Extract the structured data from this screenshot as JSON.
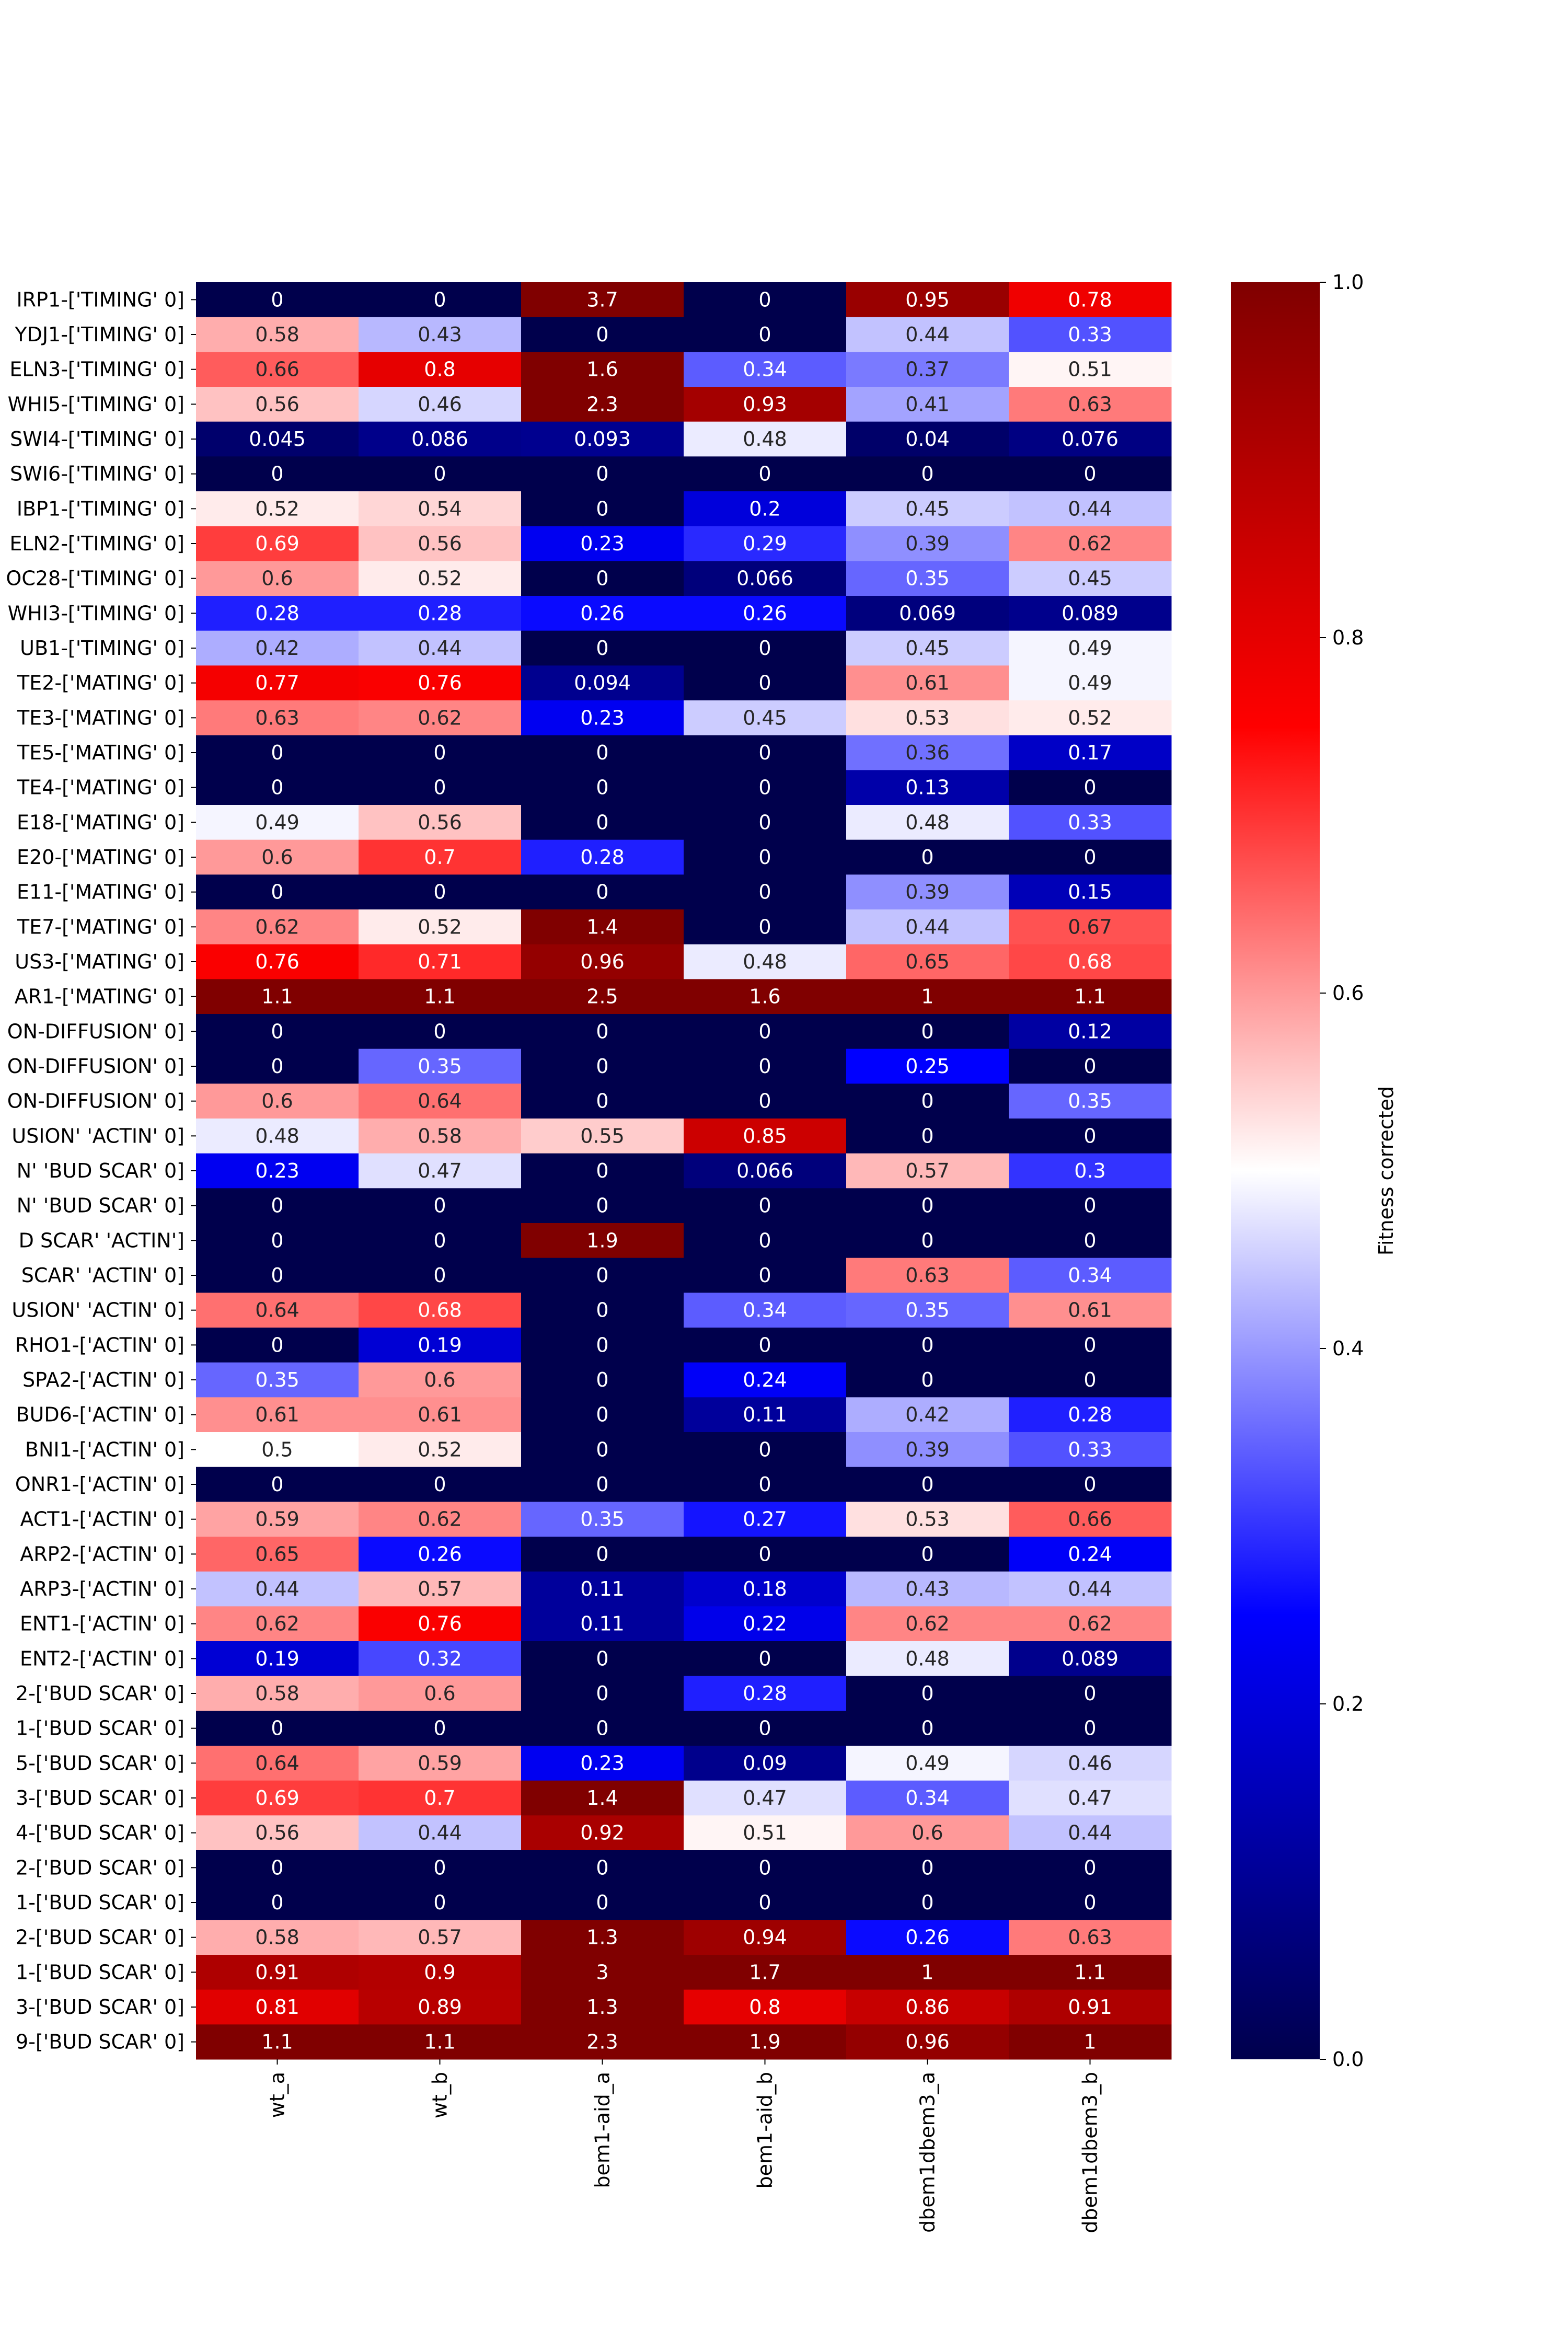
{
  "chart_data": {
    "type": "heatmap",
    "title": "",
    "xlabel": "",
    "ylabel": "",
    "columns": [
      "wt_a",
      "wt_b",
      "bem1-aid_a",
      "bem1-aid_b",
      "dbem1dbem3_a",
      "dbem1dbem3_b"
    ],
    "rows": [
      "IRP1-['TIMING' 0]",
      "YDJ1-['TIMING' 0]",
      "ELN3-['TIMING' 0]",
      "WHI5-['TIMING' 0]",
      "SWI4-['TIMING' 0]",
      "SWI6-['TIMING' 0]",
      "IBP1-['TIMING' 0]",
      "ELN2-['TIMING' 0]",
      "OC28-['TIMING' 0]",
      "WHI3-['TIMING' 0]",
      "UB1-['TIMING' 0]",
      "TE2-['MATING' 0]",
      "TE3-['MATING' 0]",
      "TE5-['MATING' 0]",
      "TE4-['MATING' 0]",
      "E18-['MATING' 0]",
      "E20-['MATING' 0]",
      "E11-['MATING' 0]",
      "TE7-['MATING' 0]",
      "US3-['MATING' 0]",
      "AR1-['MATING' 0]",
      "ON-DIFFUSION' 0]",
      "ON-DIFFUSION' 0]",
      "ON-DIFFUSION' 0]",
      "USION' 'ACTIN' 0]",
      "N' 'BUD SCAR' 0]",
      "N' 'BUD SCAR' 0]",
      "D SCAR' 'ACTIN']",
      "SCAR' 'ACTIN' 0]",
      "USION' 'ACTIN' 0]",
      "RHO1-['ACTIN' 0]",
      "SPA2-['ACTIN' 0]",
      "BUD6-['ACTIN' 0]",
      "BNI1-['ACTIN' 0]",
      "ONR1-['ACTIN' 0]",
      "ACT1-['ACTIN' 0]",
      "ARP2-['ACTIN' 0]",
      "ARP3-['ACTIN' 0]",
      "ENT1-['ACTIN' 0]",
      "ENT2-['ACTIN' 0]",
      "2-['BUD SCAR' 0]",
      "1-['BUD SCAR' 0]",
      "5-['BUD SCAR' 0]",
      "3-['BUD SCAR' 0]",
      "4-['BUD SCAR' 0]",
      "2-['BUD SCAR' 0]",
      "1-['BUD SCAR' 0]",
      "2-['BUD SCAR' 0]",
      "1-['BUD SCAR' 0]",
      "3-['BUD SCAR' 0]",
      "9-['BUD SCAR' 0]"
    ],
    "values": [
      [
        0,
        0,
        3.7,
        0,
        0.95,
        0.78
      ],
      [
        0.58,
        0.43,
        0,
        0,
        0.44,
        0.33
      ],
      [
        0.66,
        0.8,
        1.6,
        0.34,
        0.37,
        0.51
      ],
      [
        0.56,
        0.46,
        2.3,
        0.93,
        0.41,
        0.63
      ],
      [
        0.045,
        0.086,
        0.093,
        0.48,
        0.04,
        0.076
      ],
      [
        0,
        0,
        0,
        0,
        0,
        0
      ],
      [
        0.52,
        0.54,
        0,
        0.2,
        0.45,
        0.44
      ],
      [
        0.69,
        0.56,
        0.23,
        0.29,
        0.39,
        0.62
      ],
      [
        0.6,
        0.52,
        0,
        0.066,
        0.35,
        0.45
      ],
      [
        0.28,
        0.28,
        0.26,
        0.26,
        0.069,
        0.089
      ],
      [
        0.42,
        0.44,
        0,
        0,
        0.45,
        0.49
      ],
      [
        0.77,
        0.76,
        0.094,
        0,
        0.61,
        0.49
      ],
      [
        0.63,
        0.62,
        0.23,
        0.45,
        0.53,
        0.52
      ],
      [
        0,
        0,
        0,
        0,
        0.36,
        0.17
      ],
      [
        0,
        0,
        0,
        0,
        0.13,
        0
      ],
      [
        0.49,
        0.56,
        0,
        0,
        0.48,
        0.33
      ],
      [
        0.6,
        0.7,
        0.28,
        0,
        0,
        0
      ],
      [
        0,
        0,
        0,
        0,
        0.39,
        0.15
      ],
      [
        0.62,
        0.52,
        1.4,
        0,
        0.44,
        0.67
      ],
      [
        0.76,
        0.71,
        0.96,
        0.48,
        0.65,
        0.68
      ],
      [
        1.1,
        1.1,
        2.5,
        1.6,
        1,
        1.1
      ],
      [
        0,
        0,
        0,
        0,
        0,
        0.12
      ],
      [
        0,
        0.35,
        0,
        0,
        0.25,
        0
      ],
      [
        0.6,
        0.64,
        0,
        0,
        0,
        0.35
      ],
      [
        0.48,
        0.58,
        0.55,
        0.85,
        0,
        0
      ],
      [
        0.23,
        0.47,
        0,
        0.066,
        0.57,
        0.3
      ],
      [
        0,
        0,
        0,
        0,
        0,
        0
      ],
      [
        0,
        0,
        1.9,
        0,
        0,
        0
      ],
      [
        0,
        0,
        0,
        0,
        0.63,
        0.34
      ],
      [
        0.64,
        0.68,
        0,
        0.34,
        0.35,
        0.61
      ],
      [
        0,
        0.19,
        0,
        0,
        0,
        0
      ],
      [
        0.35,
        0.6,
        0,
        0.24,
        0,
        0
      ],
      [
        0.61,
        0.61,
        0,
        0.11,
        0.42,
        0.28
      ],
      [
        0.5,
        0.52,
        0,
        0,
        0.39,
        0.33
      ],
      [
        0,
        0,
        0,
        0,
        0,
        0
      ],
      [
        0.59,
        0.62,
        0.35,
        0.27,
        0.53,
        0.66
      ],
      [
        0.65,
        0.26,
        0,
        0,
        0,
        0.24
      ],
      [
        0.44,
        0.57,
        0.11,
        0.18,
        0.43,
        0.44
      ],
      [
        0.62,
        0.76,
        0.11,
        0.22,
        0.62,
        0.62
      ],
      [
        0.19,
        0.32,
        0,
        0,
        0.48,
        0.089
      ],
      [
        0.58,
        0.6,
        0,
        0.28,
        0,
        0
      ],
      [
        0,
        0,
        0,
        0,
        0,
        0
      ],
      [
        0.64,
        0.59,
        0.23,
        0.09,
        0.49,
        0.46
      ],
      [
        0.69,
        0.7,
        1.4,
        0.47,
        0.34,
        0.47
      ],
      [
        0.56,
        0.44,
        0.92,
        0.51,
        0.6,
        0.44
      ],
      [
        0,
        0,
        0,
        0,
        0,
        0
      ],
      [
        0,
        0,
        0,
        0,
        0,
        0
      ],
      [
        0.58,
        0.57,
        1.3,
        0.94,
        0.26,
        0.63
      ],
      [
        0.91,
        0.9,
        3,
        1.7,
        1,
        1.1
      ],
      [
        0.81,
        0.89,
        1.3,
        0.8,
        0.86,
        0.91
      ],
      [
        1.1,
        1.1,
        2.3,
        1.9,
        0.96,
        1
      ]
    ],
    "colormap": "seismic",
    "vmin": 0,
    "vmax": 1,
    "annotations": true,
    "colorbar": {
      "label": "Fitness corrected",
      "ticks": [
        0.0,
        0.2,
        0.4,
        0.6,
        0.8,
        1.0
      ],
      "tick_labels": [
        "0.0",
        "0.2",
        "0.4",
        "0.6",
        "0.8",
        "1.0"
      ],
      "placement": "right"
    },
    "grid": false
  }
}
